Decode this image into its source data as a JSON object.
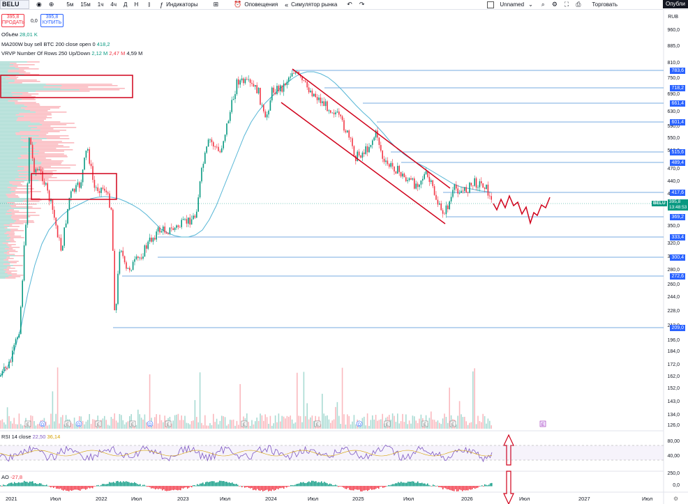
{
  "toolbar": {
    "symbol": "BELU",
    "intervals": [
      "5м",
      "15м",
      "1ч",
      "4ч",
      "Д",
      "Н"
    ],
    "indicators_label": "Индикаторы",
    "alerts_label": "Оповещения",
    "replay_label": "Симулятор рынка",
    "layout_name": "Unnamed",
    "trade_label": "Торговать",
    "publish_label": "Опубли"
  },
  "trade": {
    "sell_price": "395,8",
    "sell_label": "ПРОДАТЬ",
    "buy_price": "395,8",
    "buy_label": "КУПИТЬ",
    "spread": "0,0"
  },
  "legend": {
    "volume": "Объём",
    "volume_val": "28,01 K",
    "ma_label": "MA200W buy sell BTC 200 close open 0",
    "ma_val": "418,2",
    "vrvp_label": "VRVP Number Of Rows 250 Up/Down",
    "vrvp_up": "2,12 M",
    "vrvp_down": "2,47 M",
    "vrvp_total": "4,59 M",
    "rsi_label": "RSI 14 close",
    "rsi_val": "22,50",
    "rsi_ma": "36,14",
    "ao_label": "AO",
    "ao_val": "-27,8"
  },
  "currency": "RUB",
  "price_axis": [
    "960,0",
    "885,0",
    "810,0",
    "750,0",
    "690,0",
    "630,0",
    "590,0",
    "550,0",
    "510,0",
    "470,0",
    "440,0",
    "410,0",
    "380,0",
    "350,0",
    "320,0",
    "300,0",
    "280,0",
    "260,0",
    "244,0",
    "228,0",
    "212,0",
    "196,0",
    "184,0",
    "172,0",
    "162,0",
    "152,0",
    "143,0",
    "134,0",
    "126,0"
  ],
  "level_tags": [
    "783,6",
    "718,2",
    "661,4",
    "601,4",
    "515,6",
    "489,4",
    "417,6",
    "369,2",
    "333,4",
    "300,4",
    "272,6",
    "209,0"
  ],
  "last_price": {
    "symbol": "BELU",
    "price": "395,8",
    "countdown": "13:48:53",
    "color": "#089981"
  },
  "rsi_axis": [
    "80,00",
    "40,00"
  ],
  "ao_axis": [
    "250,0",
    "0,0"
  ],
  "time_axis": [
    "2021",
    "Июл",
    "2022",
    "Июл",
    "2023",
    "Июл",
    "2024",
    "Июл",
    "2025",
    "Июл",
    "2026",
    "Июл",
    "2027",
    "Июл"
  ],
  "colors": {
    "up": "#089981",
    "down": "#f23645",
    "accent": "#2962ff",
    "ma": "#56b6d6",
    "rsi": "#7e57c2",
    "drawing": "#d0021b"
  }
}
